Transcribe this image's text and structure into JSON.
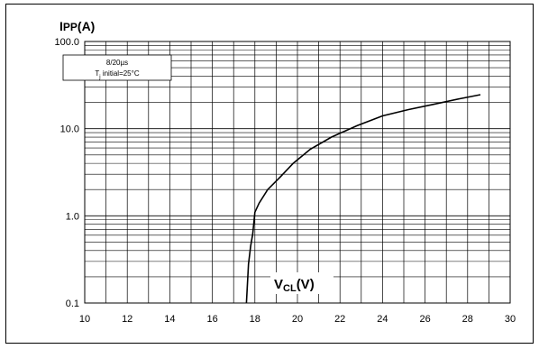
{
  "chart_data": {
    "type": "line",
    "title": "",
    "ylabel_main": "I",
    "ylabel_sub": "PP",
    "ylabel_unit": "(A)",
    "xlabel_main": "V",
    "xlabel_sub": "CL",
    "xlabel_unit": "(V)",
    "conditions": {
      "pulse": "8/20µs",
      "temp_prefix": "T",
      "temp_sub": "j",
      "temp_suffix": " initial=25°C"
    },
    "x_ticks": [
      {
        "v": 10,
        "label": "10"
      },
      {
        "v": 12,
        "label": "12"
      },
      {
        "v": 14,
        "label": "14"
      },
      {
        "v": 16,
        "label": "16"
      },
      {
        "v": 18,
        "label": "18"
      },
      {
        "v": 20,
        "label": "20"
      },
      {
        "v": 22,
        "label": "22"
      },
      {
        "v": 24,
        "label": "24"
      },
      {
        "v": 26,
        "label": "26"
      },
      {
        "v": 28,
        "label": "28"
      },
      {
        "v": 30,
        "label": "30"
      }
    ],
    "y_ticks": [
      {
        "v": 0.1,
        "label": "0.1"
      },
      {
        "v": 1,
        "label": "1.0"
      },
      {
        "v": 10,
        "label": "10.0"
      },
      {
        "v": 100,
        "label": "100.0"
      }
    ],
    "xlim": [
      10,
      30
    ],
    "ylim": [
      0.1,
      100
    ],
    "y_scale": "log",
    "grid": true,
    "series": [
      {
        "x": [
          17.6,
          17.7,
          17.8,
          17.9,
          18.0,
          18.2,
          18.6,
          19.2,
          19.8,
          20.6,
          21.6,
          22.8,
          24.0,
          25.2,
          26.4,
          27.6,
          28.6
        ],
        "y": [
          0.1,
          0.28,
          0.45,
          0.62,
          1.1,
          1.4,
          2.0,
          2.8,
          4.0,
          5.8,
          8.0,
          10.8,
          14.0,
          16.5,
          19.0,
          22.0,
          24.5
        ]
      }
    ]
  }
}
